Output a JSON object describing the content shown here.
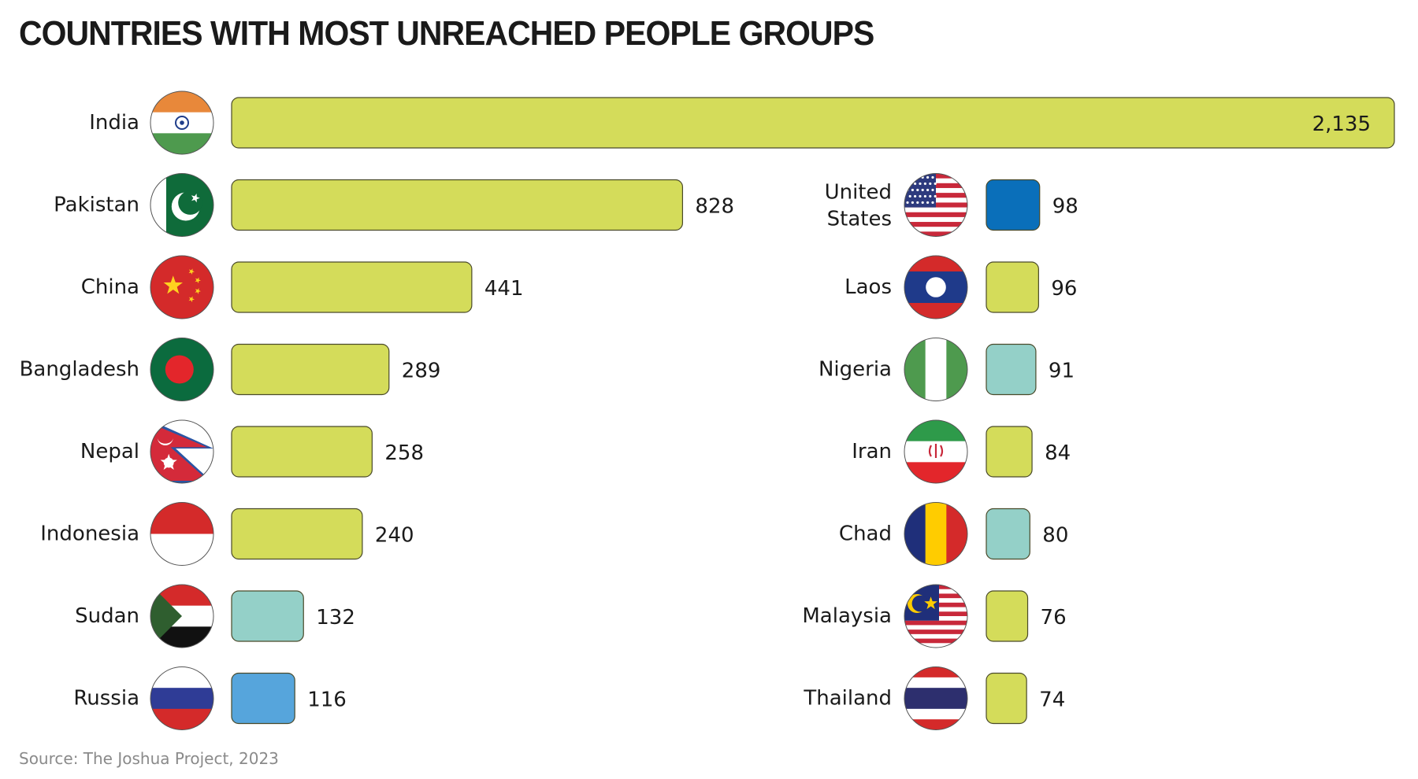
{
  "title": "COUNTRIES WITH MOST UNREACHED PEOPLE GROUPS",
  "source": "Source: The Joshua Project, 2023",
  "colors": {
    "lime": "#d4dc5a",
    "aqua": "#94d0c8",
    "sky": "#56a5dc",
    "royal": "#0a6fba",
    "outline": "#4a4a2a"
  },
  "chart_data": {
    "type": "bar",
    "orientation": "horizontal",
    "title": "COUNTRIES WITH MOST UNREACHED PEOPLE GROUPS",
    "xlabel": "",
    "ylabel": "",
    "xlim": [
      0,
      2135
    ],
    "grid": false,
    "legend": "none",
    "groups": [
      {
        "position": "left",
        "items": [
          {
            "country": "India",
            "value": 2135,
            "label": "2,135",
            "color": "#d4dc5a",
            "flag": "india"
          },
          {
            "country": "Pakistan",
            "value": 828,
            "label": "828",
            "color": "#d4dc5a",
            "flag": "pakistan"
          },
          {
            "country": "China",
            "value": 441,
            "label": "441",
            "color": "#d4dc5a",
            "flag": "china"
          },
          {
            "country": "Bangladesh",
            "value": 289,
            "label": "289",
            "color": "#d4dc5a",
            "flag": "bangladesh"
          },
          {
            "country": "Nepal",
            "value": 258,
            "label": "258",
            "color": "#d4dc5a",
            "flag": "nepal"
          },
          {
            "country": "Indonesia",
            "value": 240,
            "label": "240",
            "color": "#d4dc5a",
            "flag": "indonesia"
          },
          {
            "country": "Sudan",
            "value": 132,
            "label": "132",
            "color": "#94d0c8",
            "flag": "sudan"
          },
          {
            "country": "Russia",
            "value": 116,
            "label": "116",
            "color": "#56a5dc",
            "flag": "russia"
          }
        ]
      },
      {
        "position": "right",
        "items": [
          {
            "country": "United States",
            "lines": [
              "United",
              "States"
            ],
            "value": 98,
            "label": "98",
            "color": "#0a6fba",
            "flag": "usa"
          },
          {
            "country": "Laos",
            "value": 96,
            "label": "96",
            "color": "#d4dc5a",
            "flag": "laos"
          },
          {
            "country": "Nigeria",
            "value": 91,
            "label": "91",
            "color": "#94d0c8",
            "flag": "nigeria"
          },
          {
            "country": "Iran",
            "value": 84,
            "label": "84",
            "color": "#d4dc5a",
            "flag": "iran"
          },
          {
            "country": "Chad",
            "value": 80,
            "label": "80",
            "color": "#94d0c8",
            "flag": "chad"
          },
          {
            "country": "Malaysia",
            "value": 76,
            "label": "76",
            "color": "#d4dc5a",
            "flag": "malaysia"
          },
          {
            "country": "Thailand",
            "value": 74,
            "label": "74",
            "color": "#d4dc5a",
            "flag": "thailand"
          }
        ]
      }
    ]
  }
}
